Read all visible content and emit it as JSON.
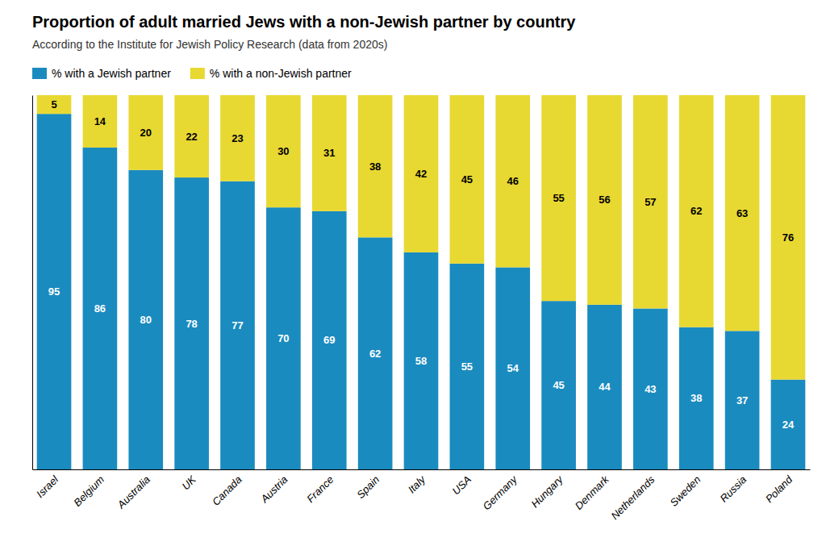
{
  "chart_data": {
    "type": "bar",
    "stacked": true,
    "title": "Proportion of adult married Jews with a non-Jewish partner by country",
    "subtitle": "According to the Institute for Jewish Policy Research (data from 2020s)",
    "categories": [
      "Israel",
      "Belgium",
      "Australia",
      "UK",
      "Canada",
      "Austria",
      "France",
      "Spain",
      "Italy",
      "USA",
      "Germany",
      "Hungary",
      "Denmark",
      "Netherlands",
      "Sweden",
      "Russia",
      "Poland"
    ],
    "series": [
      {
        "name": "% with a Jewish partner",
        "color": "#1a8bbf",
        "values": [
          95,
          86,
          80,
          78,
          77,
          70,
          69,
          62,
          58,
          55,
          54,
          45,
          44,
          43,
          38,
          37,
          24
        ]
      },
      {
        "name": "% with a non-Jewish partner",
        "color": "#e8d832",
        "values": [
          5,
          14,
          20,
          22,
          23,
          30,
          31,
          38,
          42,
          45,
          46,
          55,
          56,
          57,
          62,
          63,
          76
        ]
      }
    ],
    "ylim": [
      0,
      100
    ],
    "grid": false,
    "legend": "top-left",
    "data_labels": true,
    "tick_labels": "x"
  }
}
